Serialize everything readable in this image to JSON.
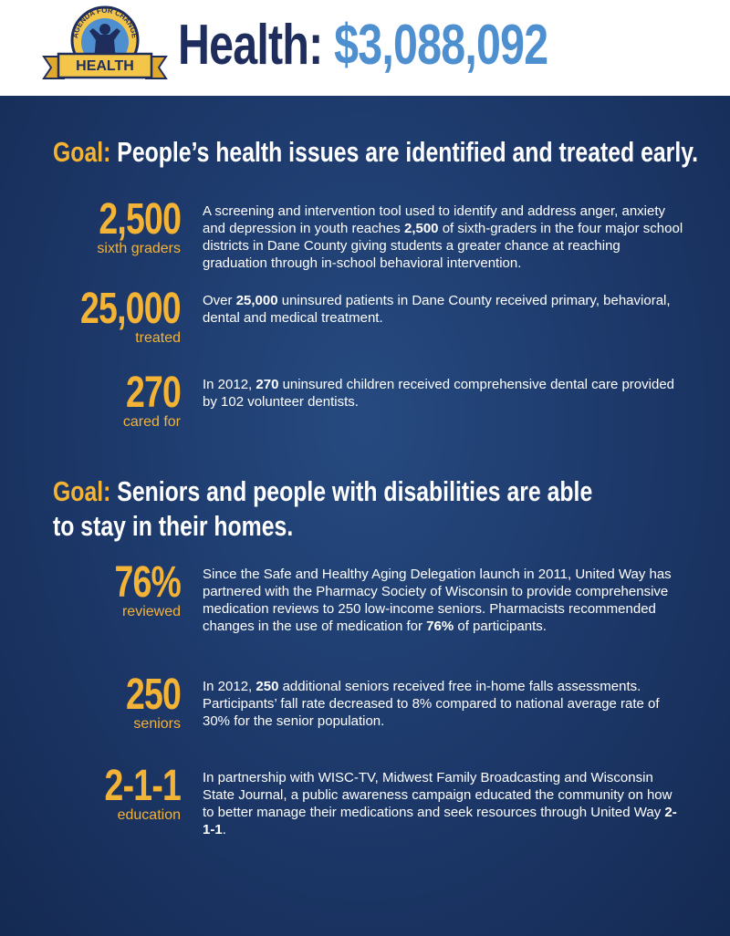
{
  "header": {
    "badge_arc": "AGENDA FOR CHANGE",
    "badge_label": "HEALTH",
    "title_label": "Health:",
    "title_amount": "$3,088,092"
  },
  "goals": [
    {
      "label": "Goal:",
      "text": "People’s health issues are identified and treated early.",
      "items": [
        {
          "number": "2,500",
          "unit": "sixth graders",
          "description": [
            "A screening and intervention tool used to identify and address anger, anxiety and depression in youth reaches ",
            "2,500",
            " of sixth-graders in the four major school districts in Dane County giving students a greater chance at reaching graduation through in-school behavioral intervention."
          ]
        },
        {
          "number": "25,000",
          "unit": "treated",
          "description": [
            "Over ",
            "25,000",
            " uninsured patients in Dane County received primary, behavioral, dental and medical treatment."
          ]
        },
        {
          "number": "270",
          "unit": "cared for",
          "description": [
            "In 2012, ",
            "270",
            " uninsured children received comprehensive dental care provided by 102 volunteer dentists."
          ]
        }
      ]
    },
    {
      "label": "Goal:",
      "text": "Seniors and people with disabilities are able to stay in their homes.",
      "items": [
        {
          "number": "76%",
          "unit": "reviewed",
          "description": [
            "Since the Safe and Healthy Aging Delegation launch in 2011, United Way has partnered with the Pharmacy Society of Wisconsin to provide comprehensive medication reviews to 250 low-income seniors. Pharmacists recommended changes in the use of medication for ",
            "76%",
            " of participants."
          ]
        },
        {
          "number": "250",
          "unit": "seniors",
          "description": [
            "In 2012, ",
            "250",
            " additional seniors received free in-home falls assessments. Participants’ fall rate decreased to 8% compared to national average rate of 30% for the senior population."
          ]
        },
        {
          "number": "2-1-1",
          "unit": "education",
          "description": [
            "In partnership with WISC-TV, Midwest Family Broadcasting and Wisconsin State Journal, a public awareness campaign educated the community on how to better manage their medications and seek resources through United Way ",
            "2-1-1",
            "."
          ]
        }
      ]
    }
  ]
}
